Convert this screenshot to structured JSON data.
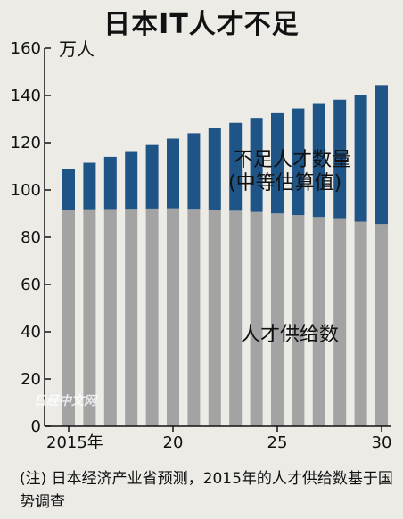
{
  "chart_data": {
    "type": "bar",
    "stacked": true,
    "title": "日本IT人才不足",
    "unit": "万人",
    "categories": [
      "2015年",
      "16",
      "17",
      "18",
      "19",
      "20",
      "21",
      "22",
      "23",
      "24",
      "25",
      "26",
      "27",
      "28",
      "29",
      "30"
    ],
    "x_tick_labels": [
      "2015年",
      "20",
      "25",
      "30"
    ],
    "series": [
      {
        "name": "人才供给数",
        "color": "#a3a3a3",
        "values": [
          91.6,
          91.8,
          91.9,
          92.0,
          92.1,
          92.2,
          92.0,
          91.6,
          91.2,
          90.7,
          90.1,
          89.4,
          88.6,
          87.7,
          86.6,
          85.6
        ]
      },
      {
        "name": "不足人才数量（中等估算值）",
        "color": "#1f5486",
        "values": [
          17.4,
          19.7,
          22.1,
          24.4,
          26.9,
          29.5,
          32.0,
          34.6,
          37.2,
          39.8,
          42.4,
          45.1,
          47.8,
          50.5,
          53.4,
          58.8
        ]
      }
    ],
    "series_labels": {
      "shortage_line1": "不足人才数量",
      "shortage_line2": "(中等估算值)",
      "supply": "人才供给数"
    },
    "ylim": [
      0,
      160
    ],
    "y_ticks": [
      0,
      20,
      40,
      60,
      80,
      100,
      120,
      140,
      160
    ],
    "grid": false
  },
  "watermark": "日经中文网",
  "footnote": "(注) 日本经济产业省预测，2015年的人才供给数基于国势调查"
}
